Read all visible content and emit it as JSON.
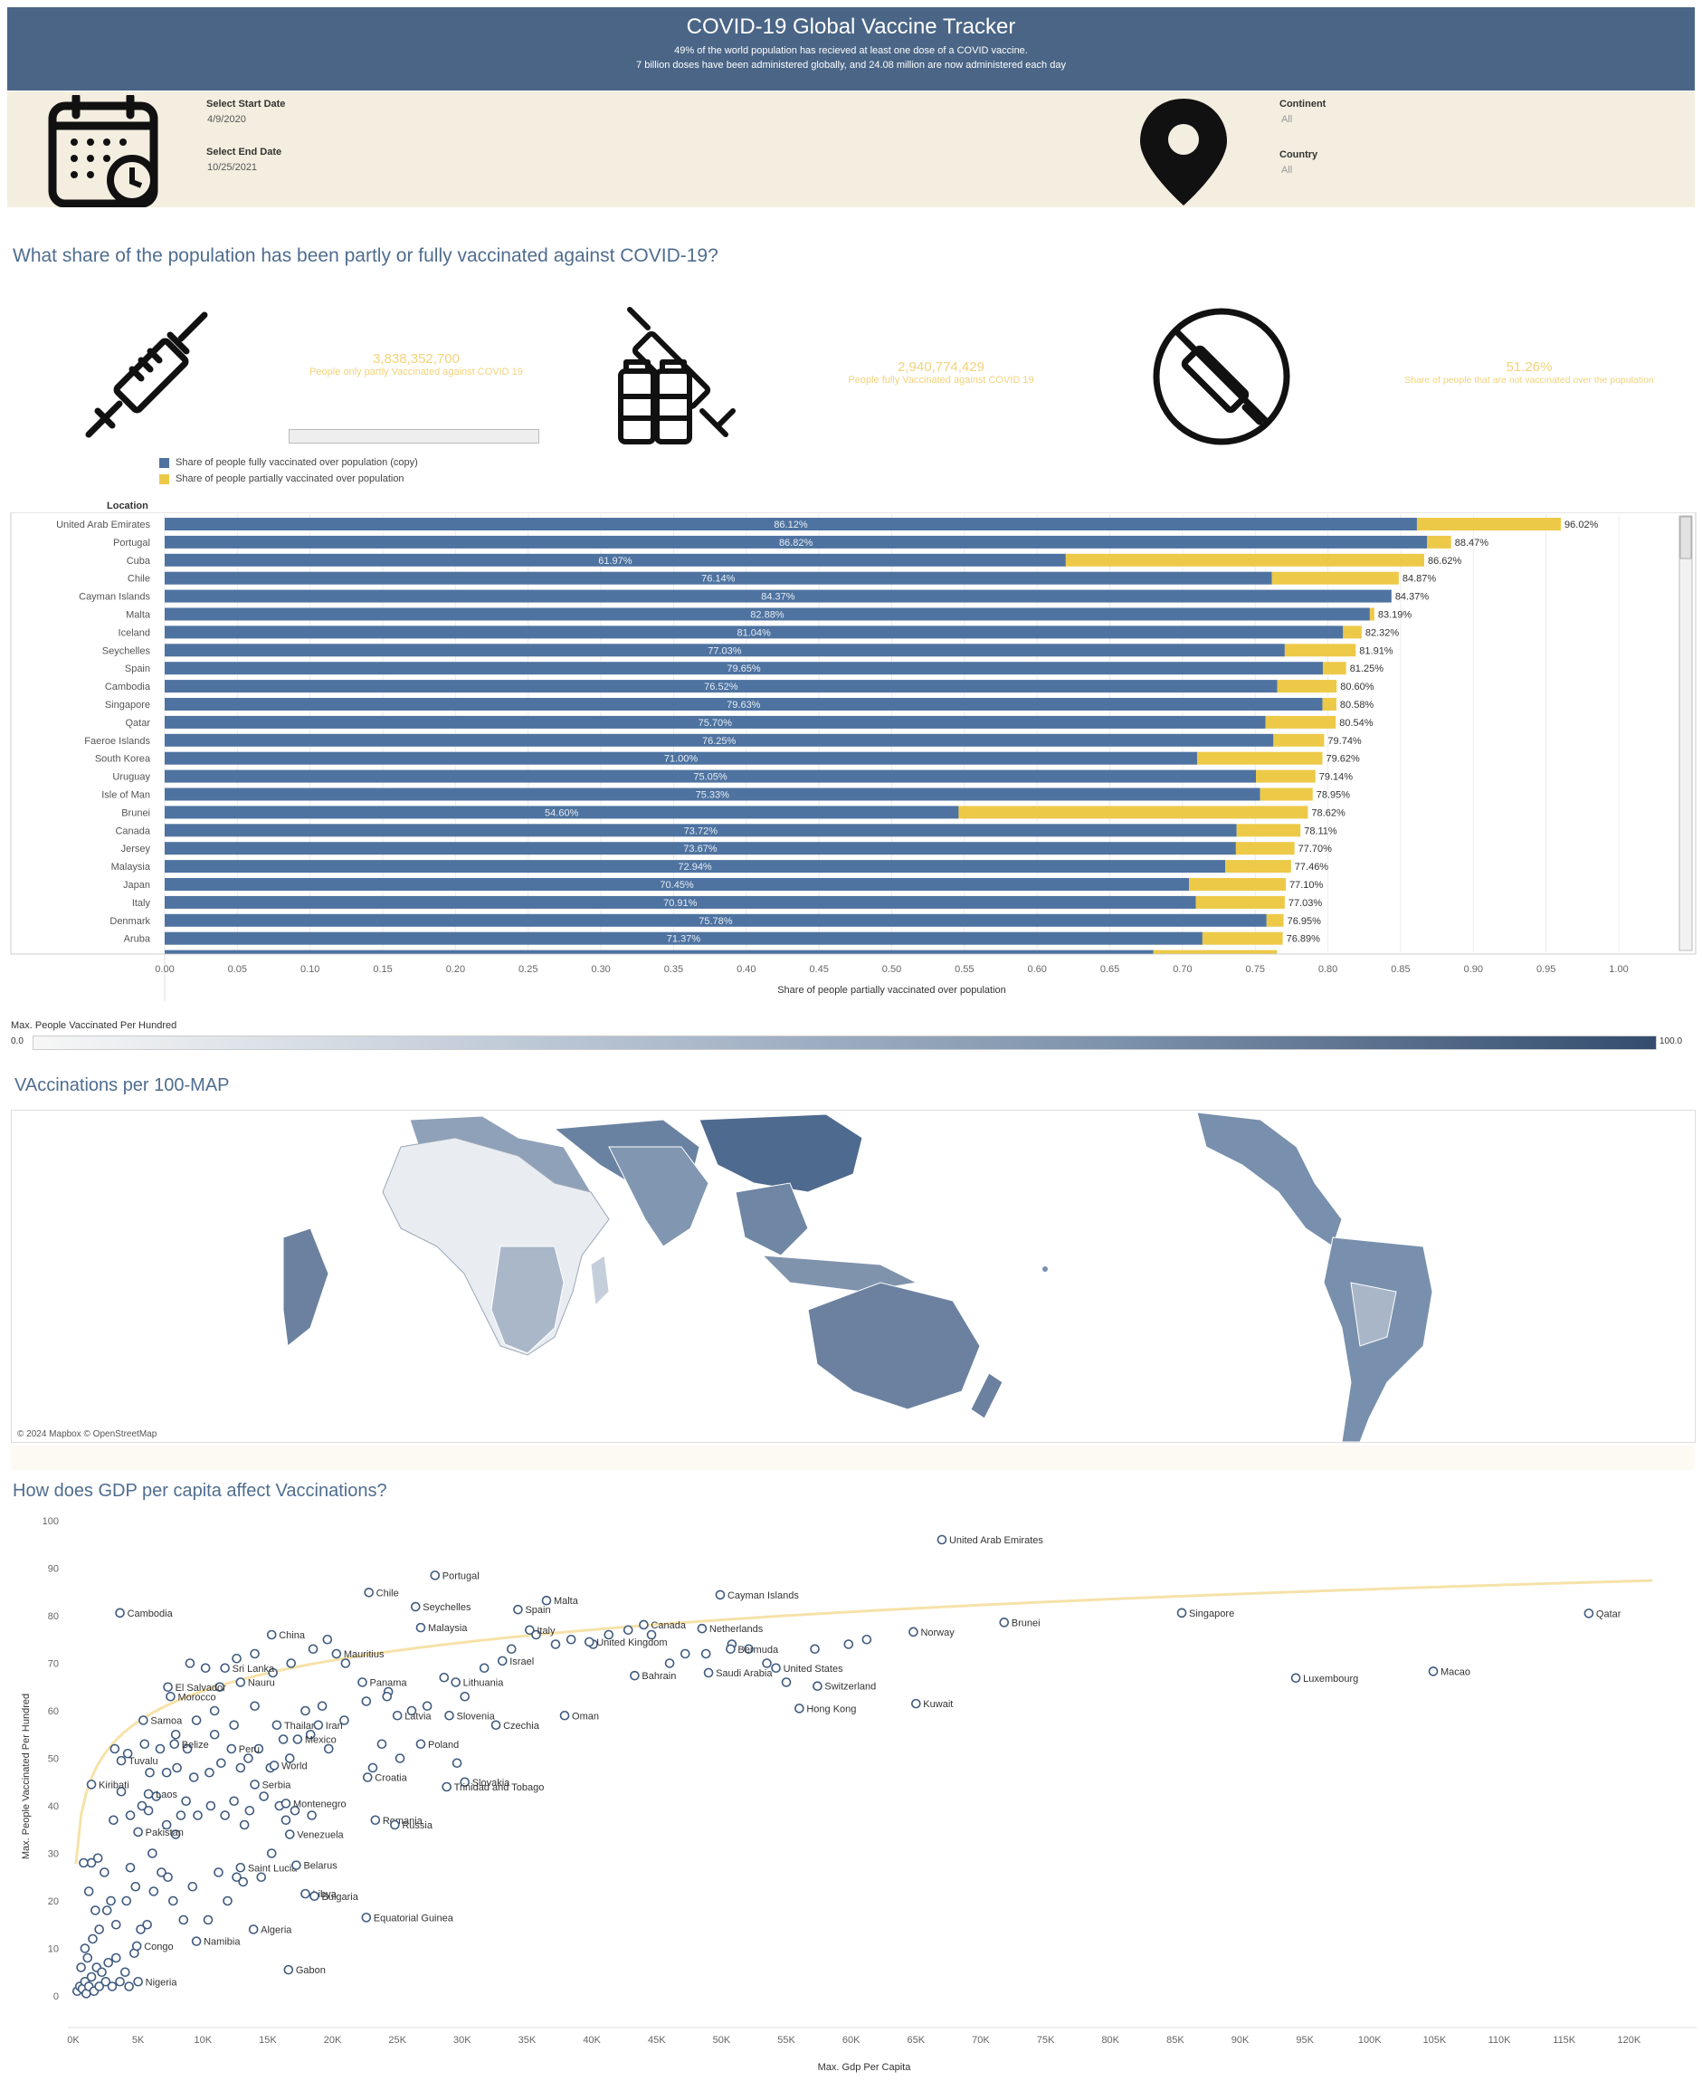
{
  "header": {
    "title": "COVID-19 Global Vaccine Tracker",
    "subtitle1": "49% of the world population has recieved at least one dose of a COVID vaccine.",
    "subtitle2": "7 billion doses have been administered globally, and 24.08 million are now administered each day"
  },
  "filters": {
    "start_label": "Select Start Date",
    "start_value": "4/9/2020",
    "end_label": "Select End Date",
    "end_value": "10/25/2021",
    "continent_label": "Continent",
    "continent_value": "All",
    "country_label": "Country",
    "country_value": "All",
    "calendar_icon": "calendar-clock-icon",
    "location_icon": "map-pin-icon"
  },
  "section1": {
    "title": "What share of the population has been partly or fully vaccinated against COVID-19?"
  },
  "kpis": [
    {
      "value": "3,838,352,700",
      "label": "People only partly Vaccinated against COVID 19",
      "icon": "syringe-icon"
    },
    {
      "value": "2,940,774,429",
      "label": "People fully Vaccinated against COVID 19",
      "icon": "vaccine-vials-icon"
    },
    {
      "value": "51.26%",
      "label": "Share of people that are not vaccinated over the population",
      "icon": "no-vaccine-icon"
    }
  ],
  "bar_legend": [
    {
      "label": "Share of people fully vaccinated over population (copy)",
      "color": "#4e73a0"
    },
    {
      "label": "Share of people partially vaccinated over population",
      "color": "#edc948"
    }
  ],
  "bar_chart": {
    "chart_data": {
      "type": "bar",
      "orientation": "horizontal",
      "stacked": true,
      "row_header": "Location",
      "xlabel": "Share of people partially vaccinated over population",
      "xlim": [
        0,
        1.0
      ],
      "xticks": [
        "0.00",
        "0.05",
        "0.10",
        "0.15",
        "0.20",
        "0.25",
        "0.30",
        "0.35",
        "0.40",
        "0.45",
        "0.50",
        "0.55",
        "0.60",
        "0.65",
        "0.70",
        "0.75",
        "0.80",
        "0.85",
        "0.90",
        "0.95",
        "1.00"
      ],
      "categories": [
        "United Arab Emirates",
        "Portugal",
        "Cuba",
        "Chile",
        "Cayman Islands",
        "Malta",
        "Iceland",
        "Seychelles",
        "Spain",
        "Cambodia",
        "Singapore",
        "Qatar",
        "Faeroe Islands",
        "South Korea",
        "Uruguay",
        "Isle of Man",
        "Brunei",
        "Canada",
        "Jersey",
        "Malaysia",
        "Japan",
        "Italy",
        "Denmark",
        "Aruba"
      ],
      "fully": [
        0.8612,
        0.8682,
        0.6197,
        0.7614,
        0.8437,
        0.8288,
        0.8104,
        0.7703,
        0.7965,
        0.7652,
        0.7963,
        0.757,
        0.7625,
        0.71,
        0.7505,
        0.7533,
        0.546,
        0.7372,
        0.7367,
        0.7294,
        0.7045,
        0.7091,
        0.7578,
        0.7137
      ],
      "fully_labels": [
        "86.12%",
        "86.82%",
        "61.97%",
        "76.14%",
        "84.37%",
        "82.88%",
        "81.04%",
        "77.03%",
        "79.65%",
        "76.52%",
        "79.63%",
        "75.70%",
        "76.25%",
        "71.00%",
        "75.05%",
        "75.33%",
        "54.60%",
        "73.72%",
        "73.67%",
        "72.94%",
        "70.45%",
        "70.91%",
        "75.78%",
        "71.37%"
      ],
      "total": [
        0.9602,
        0.8847,
        0.8662,
        0.8487,
        0.8437,
        0.8319,
        0.8232,
        0.8191,
        0.8125,
        0.806,
        0.8058,
        0.8054,
        0.7974,
        0.7962,
        0.7914,
        0.7895,
        0.7862,
        0.7811,
        0.777,
        0.7746,
        0.771,
        0.7703,
        0.7695,
        0.7689
      ],
      "total_labels": [
        "96.02%",
        "88.47%",
        "86.62%",
        "84.87%",
        "84.37%",
        "83.19%",
        "82.32%",
        "81.91%",
        "81.25%",
        "80.60%",
        "80.58%",
        "80.54%",
        "79.74%",
        "79.62%",
        "79.14%",
        "78.95%",
        "78.62%",
        "78.11%",
        "77.70%",
        "77.46%",
        "77.10%",
        "77.03%",
        "76.95%",
        "76.89%"
      ]
    }
  },
  "color_scale": {
    "title": "Max. People Vaccinated Per Hundred",
    "min": "0.0",
    "max": "100.0"
  },
  "map": {
    "title": "VAccinations per 100-MAP",
    "attribution": "© 2024 Mapbox © OpenStreetMap"
  },
  "scatter": {
    "title": "How does GDP per capita affect Vaccinations?",
    "chart_data": {
      "type": "scatter",
      "xlabel": "Max. Gdp Per Capita",
      "ylabel": "Max. People Vaccinated Per Hundred",
      "xlim": [
        0,
        122000
      ],
      "ylim": [
        0,
        100
      ],
      "xticks": [
        "0K",
        "5K",
        "10K",
        "15K",
        "20K",
        "25K",
        "30K",
        "35K",
        "40K",
        "45K",
        "50K",
        "55K",
        "60K",
        "65K",
        "70K",
        "75K",
        "80K",
        "85K",
        "90K",
        "95K",
        "100K",
        "105K",
        "110K",
        "115K",
        "120K"
      ],
      "yticks": [
        "0",
        "10",
        "20",
        "30",
        "40",
        "50",
        "60",
        "70",
        "80",
        "90",
        "100"
      ],
      "trend": "logarithmic",
      "labeled_points": [
        {
          "name": "United Arab Emirates",
          "x": 67000,
          "y": 96.0
        },
        {
          "name": "Portugal",
          "x": 27900,
          "y": 88.5
        },
        {
          "name": "Chile",
          "x": 22800,
          "y": 84.9
        },
        {
          "name": "Seychelles",
          "x": 26400,
          "y": 81.9
        },
        {
          "name": "Malta",
          "x": 36500,
          "y": 83.2
        },
        {
          "name": "Spain",
          "x": 34300,
          "y": 81.3
        },
        {
          "name": "Cayman Islands",
          "x": 49900,
          "y": 84.4
        },
        {
          "name": "Canada",
          "x": 44000,
          "y": 78.1
        },
        {
          "name": "Cambodia",
          "x": 3600,
          "y": 80.6
        },
        {
          "name": "Netherlands",
          "x": 48500,
          "y": 77.3
        },
        {
          "name": "Singapore",
          "x": 85500,
          "y": 80.6
        },
        {
          "name": "Qatar",
          "x": 116900,
          "y": 80.5
        },
        {
          "name": "Norway",
          "x": 64800,
          "y": 76.6
        },
        {
          "name": "Brunei",
          "x": 71800,
          "y": 78.6
        },
        {
          "name": "Italy",
          "x": 35200,
          "y": 77.0
        },
        {
          "name": "China",
          "x": 15300,
          "y": 76.0
        },
        {
          "name": "Malaysia",
          "x": 26800,
          "y": 77.5
        },
        {
          "name": "Mauritius",
          "x": 20300,
          "y": 72.0
        },
        {
          "name": "Sri Lanka",
          "x": 11700,
          "y": 69.0
        },
        {
          "name": "Israel",
          "x": 33100,
          "y": 70.5
        },
        {
          "name": "United Kingdom",
          "x": 39800,
          "y": 74.5
        },
        {
          "name": "Bermuda",
          "x": 50700,
          "y": 73.0
        },
        {
          "name": "United States",
          "x": 54200,
          "y": 69.0
        },
        {
          "name": "Switzerland",
          "x": 57400,
          "y": 65.2
        },
        {
          "name": "Bahrain",
          "x": 43300,
          "y": 67.4
        },
        {
          "name": "Saudi Arabia",
          "x": 49000,
          "y": 68.0
        },
        {
          "name": "Luxembourg",
          "x": 94300,
          "y": 66.9
        },
        {
          "name": "Macao",
          "x": 104900,
          "y": 68.3
        },
        {
          "name": "El Salvador",
          "x": 7300,
          "y": 65.0
        },
        {
          "name": "Nauru",
          "x": 12900,
          "y": 66.0
        },
        {
          "name": "Morocco",
          "x": 7500,
          "y": 63.0
        },
        {
          "name": "Panama",
          "x": 22300,
          "y": 66.0
        },
        {
          "name": "Lithuania",
          "x": 29500,
          "y": 66.0
        },
        {
          "name": "Hong Kong",
          "x": 56000,
          "y": 60.5
        },
        {
          "name": "Kuwait",
          "x": 65000,
          "y": 61.5
        },
        {
          "name": "Samoa",
          "x": 5400,
          "y": 58.0
        },
        {
          "name": "Thailand",
          "x": 15700,
          "y": 57.0
        },
        {
          "name": "Iran",
          "x": 18900,
          "y": 57.0
        },
        {
          "name": "Latvia",
          "x": 25000,
          "y": 59.0
        },
        {
          "name": "Czechia",
          "x": 32600,
          "y": 57.0
        },
        {
          "name": "Oman",
          "x": 37900,
          "y": 59.0
        },
        {
          "name": "Mexico",
          "x": 17300,
          "y": 54.0
        },
        {
          "name": "Slovenia",
          "x": 29000,
          "y": 59.0
        },
        {
          "name": "Belize",
          "x": 7800,
          "y": 53.0
        },
        {
          "name": "Peru",
          "x": 12200,
          "y": 52.0
        },
        {
          "name": "Poland",
          "x": 26800,
          "y": 53.0
        },
        {
          "name": "Tuvalu",
          "x": 3700,
          "y": 49.5
        },
        {
          "name": "World",
          "x": 15500,
          "y": 48.5
        },
        {
          "name": "Serbia",
          "x": 14000,
          "y": 44.5
        },
        {
          "name": "Croatia",
          "x": 22700,
          "y": 46.0
        },
        {
          "name": "Slovakia",
          "x": 30200,
          "y": 45.0
        },
        {
          "name": "Kiribati",
          "x": 1400,
          "y": 44.5
        },
        {
          "name": "Laos",
          "x": 5800,
          "y": 42.5
        },
        {
          "name": "Trinidad and Tobago",
          "x": 28800,
          "y": 44.0
        },
        {
          "name": "Montenegro",
          "x": 16400,
          "y": 40.5
        },
        {
          "name": "Romania",
          "x": 23300,
          "y": 37.0
        },
        {
          "name": "Russia",
          "x": 24800,
          "y": 36.0
        },
        {
          "name": "Pakistan",
          "x": 5000,
          "y": 34.5
        },
        {
          "name": "Venezuela",
          "x": 16700,
          "y": 34.0
        },
        {
          "name": "Saint Lucia",
          "x": 12900,
          "y": 27.0
        },
        {
          "name": "Belarus",
          "x": 17200,
          "y": 27.5
        },
        {
          "name": "Libya",
          "x": 17900,
          "y": 21.5
        },
        {
          "name": "Bulgaria",
          "x": 18600,
          "y": 21.0
        },
        {
          "name": "Equatorial Guinea",
          "x": 22600,
          "y": 16.5
        },
        {
          "name": "Algeria",
          "x": 13900,
          "y": 14.0
        },
        {
          "name": "Congo",
          "x": 4900,
          "y": 10.5
        },
        {
          "name": "Namibia",
          "x": 9500,
          "y": 11.5
        },
        {
          "name": "Gabon",
          "x": 16600,
          "y": 5.5
        },
        {
          "name": "Nigeria",
          "x": 5000,
          "y": 3.0
        }
      ],
      "unlabeled_points": [
        [
          300,
          1
        ],
        [
          500,
          2
        ],
        [
          700,
          1.5
        ],
        [
          900,
          3
        ],
        [
          1000,
          0.5
        ],
        [
          1200,
          2
        ],
        [
          1400,
          4
        ],
        [
          1600,
          1
        ],
        [
          1800,
          6
        ],
        [
          2000,
          2
        ],
        [
          2200,
          5
        ],
        [
          2500,
          3
        ],
        [
          2700,
          7
        ],
        [
          3000,
          2
        ],
        [
          3300,
          8
        ],
        [
          3600,
          3
        ],
        [
          4000,
          5
        ],
        [
          4300,
          2
        ],
        [
          4700,
          9
        ],
        [
          1100,
          8
        ],
        [
          900,
          10
        ],
        [
          600,
          6
        ],
        [
          1500,
          12
        ],
        [
          2000,
          14
        ],
        [
          2600,
          18
        ],
        [
          1700,
          18
        ],
        [
          1200,
          22
        ],
        [
          1400,
          28
        ],
        [
          800,
          28
        ],
        [
          1900,
          29
        ],
        [
          2400,
          26
        ],
        [
          2900,
          20
        ],
        [
          3300,
          15
        ],
        [
          4100,
          20
        ],
        [
          5200,
          14
        ],
        [
          5700,
          15
        ],
        [
          6200,
          22
        ],
        [
          6800,
          26
        ],
        [
          7300,
          25
        ],
        [
          7700,
          20
        ],
        [
          8500,
          16
        ],
        [
          9200,
          23
        ],
        [
          10400,
          16
        ],
        [
          11200,
          26
        ],
        [
          11900,
          20
        ],
        [
          12600,
          25
        ],
        [
          13100,
          24
        ],
        [
          14500,
          25
        ],
        [
          15300,
          30
        ],
        [
          4400,
          27
        ],
        [
          4800,
          23
        ],
        [
          6100,
          30
        ],
        [
          7200,
          36
        ],
        [
          7900,
          34
        ],
        [
          8300,
          38
        ],
        [
          8700,
          41
        ],
        [
          9600,
          38
        ],
        [
          10600,
          40
        ],
        [
          11700,
          38
        ],
        [
          12400,
          41
        ],
        [
          13200,
          36
        ],
        [
          13600,
          39
        ],
        [
          14700,
          42
        ],
        [
          15900,
          40
        ],
        [
          16400,
          37
        ],
        [
          17100,
          39
        ],
        [
          18400,
          38
        ],
        [
          3100,
          37
        ],
        [
          3700,
          43
        ],
        [
          4400,
          38
        ],
        [
          5300,
          40
        ],
        [
          5800,
          39
        ],
        [
          6400,
          42
        ],
        [
          7200,
          47
        ],
        [
          8000,
          48
        ],
        [
          9300,
          46
        ],
        [
          10500,
          47
        ],
        [
          11400,
          49
        ],
        [
          12900,
          48
        ],
        [
          13500,
          50
        ],
        [
          14300,
          52
        ],
        [
          15200,
          48
        ],
        [
          16700,
          50
        ],
        [
          4200,
          51
        ],
        [
          5500,
          53
        ],
        [
          6700,
          52
        ],
        [
          7900,
          55
        ],
        [
          9500,
          58
        ],
        [
          10900,
          60
        ],
        [
          12400,
          57
        ],
        [
          14000,
          61
        ],
        [
          16200,
          54
        ],
        [
          18300,
          55
        ],
        [
          19700,
          52
        ],
        [
          20900,
          58
        ],
        [
          22600,
          62
        ],
        [
          24300,
          64
        ],
        [
          26100,
          60
        ],
        [
          27300,
          61
        ],
        [
          28600,
          67
        ],
        [
          30200,
          63
        ],
        [
          31700,
          69
        ],
        [
          33800,
          73
        ],
        [
          35700,
          76
        ],
        [
          37200,
          74
        ],
        [
          38400,
          75
        ],
        [
          40100,
          74
        ],
        [
          41300,
          76
        ],
        [
          42800,
          77
        ],
        [
          44600,
          76
        ],
        [
          46000,
          70
        ],
        [
          47200,
          72
        ],
        [
          48800,
          72
        ],
        [
          50800,
          74
        ],
        [
          52100,
          73
        ],
        [
          53500,
          70
        ],
        [
          55000,
          66
        ],
        [
          57200,
          73
        ],
        [
          59800,
          74
        ],
        [
          61200,
          75
        ],
        [
          9000,
          70
        ],
        [
          10200,
          69
        ],
        [
          11300,
          65
        ],
        [
          12600,
          71
        ],
        [
          14000,
          72
        ],
        [
          15400,
          68
        ],
        [
          16800,
          70
        ],
        [
          18500,
          73
        ],
        [
          19600,
          75
        ],
        [
          21000,
          70
        ],
        [
          24200,
          63
        ],
        [
          3200,
          52
        ],
        [
          5900,
          47
        ],
        [
          8800,
          52
        ],
        [
          10900,
          55
        ],
        [
          17900,
          60
        ],
        [
          19200,
          61
        ],
        [
          23100,
          48
        ],
        [
          25200,
          50
        ],
        [
          29600,
          49
        ],
        [
          23800,
          53
        ]
      ]
    }
  }
}
